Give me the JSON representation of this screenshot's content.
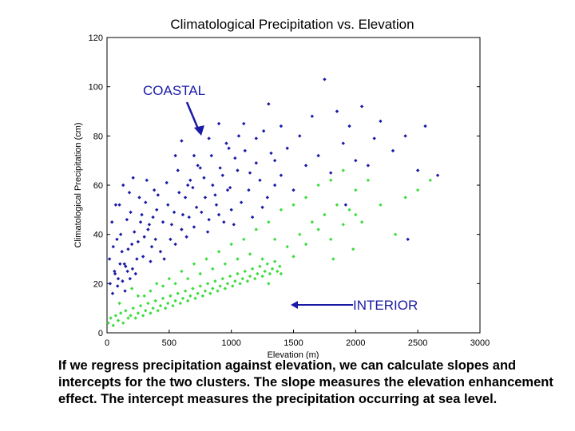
{
  "chart_data": {
    "type": "scatter",
    "title": "Climatological Precipitation vs. Elevation",
    "xlabel": "Elevation (m)",
    "ylabel": "Climatological Precipitation (cm)",
    "xlim": [
      0,
      3000
    ],
    "ylim": [
      0,
      120
    ],
    "xticks": [
      0,
      500,
      1000,
      1500,
      2000,
      2500,
      3000
    ],
    "yticks": [
      0,
      20,
      40,
      60,
      80,
      100,
      120
    ],
    "grid": false,
    "series": [
      {
        "name": "COASTAL",
        "color": "#1a1aa6",
        "points": [
          [
            20,
            30
          ],
          [
            40,
            45
          ],
          [
            60,
            25
          ],
          [
            80,
            38
          ],
          [
            100,
            52
          ],
          [
            120,
            33
          ],
          [
            140,
            28
          ],
          [
            160,
            46
          ],
          [
            180,
            57
          ],
          [
            200,
            36
          ],
          [
            220,
            41
          ],
          [
            240,
            30
          ],
          [
            260,
            55
          ],
          [
            280,
            48
          ],
          [
            300,
            39
          ],
          [
            320,
            62
          ],
          [
            340,
            44
          ],
          [
            360,
            35
          ],
          [
            380,
            58
          ],
          [
            400,
            50
          ],
          [
            50,
            35
          ],
          [
            70,
            52
          ],
          [
            90,
            22
          ],
          [
            110,
            40
          ],
          [
            130,
            60
          ],
          [
            150,
            27
          ],
          [
            170,
            34
          ],
          [
            190,
            49
          ],
          [
            210,
            63
          ],
          [
            230,
            24
          ],
          [
            250,
            37
          ],
          [
            270,
            45
          ],
          [
            290,
            31
          ],
          [
            310,
            53
          ],
          [
            330,
            42
          ],
          [
            350,
            29
          ],
          [
            370,
            47
          ],
          [
            390,
            38
          ],
          [
            410,
            56
          ],
          [
            430,
            33
          ],
          [
            450,
            45
          ],
          [
            480,
            61
          ],
          [
            510,
            38
          ],
          [
            540,
            49
          ],
          [
            570,
            66
          ],
          [
            600,
            42
          ],
          [
            630,
            55
          ],
          [
            660,
            47
          ],
          [
            690,
            59
          ],
          [
            720,
            51
          ],
          [
            460,
            30
          ],
          [
            490,
            52
          ],
          [
            520,
            44
          ],
          [
            550,
            36
          ],
          [
            580,
            57
          ],
          [
            610,
            48
          ],
          [
            640,
            39
          ],
          [
            670,
            62
          ],
          [
            700,
            43
          ],
          [
            730,
            68
          ],
          [
            760,
            49
          ],
          [
            790,
            55
          ],
          [
            820,
            46
          ],
          [
            850,
            60
          ],
          [
            880,
            52
          ],
          [
            910,
            67
          ],
          [
            940,
            45
          ],
          [
            970,
            58
          ],
          [
            1000,
            50
          ],
          [
            1030,
            71
          ],
          [
            780,
            63
          ],
          [
            810,
            41
          ],
          [
            840,
            72
          ],
          [
            870,
            56
          ],
          [
            900,
            48
          ],
          [
            930,
            64
          ],
          [
            960,
            77
          ],
          [
            990,
            59
          ],
          [
            1020,
            44
          ],
          [
            1050,
            66
          ],
          [
            1080,
            53
          ],
          [
            1110,
            74
          ],
          [
            1140,
            58
          ],
          [
            1170,
            47
          ],
          [
            1200,
            69
          ],
          [
            1230,
            62
          ],
          [
            1260,
            82
          ],
          [
            1290,
            55
          ],
          [
            1320,
            73
          ],
          [
            1350,
            60
          ],
          [
            1100,
            85
          ],
          [
            1150,
            65
          ],
          [
            1200,
            79
          ],
          [
            1250,
            51
          ],
          [
            1300,
            93
          ],
          [
            1350,
            70
          ],
          [
            1400,
            64
          ],
          [
            1450,
            75
          ],
          [
            1500,
            58
          ],
          [
            1550,
            80
          ],
          [
            1600,
            68
          ],
          [
            1650,
            88
          ],
          [
            1700,
            72
          ],
          [
            1750,
            103
          ],
          [
            1800,
            65
          ],
          [
            1850,
            90
          ],
          [
            1900,
            77
          ],
          [
            1950,
            84
          ],
          [
            2000,
            70
          ],
          [
            2050,
            92
          ],
          [
            2100,
            68
          ],
          [
            2150,
            79
          ],
          [
            2200,
            86
          ],
          [
            2300,
            74
          ],
          [
            2400,
            80
          ],
          [
            2500,
            66
          ],
          [
            2560,
            84
          ],
          [
            2660,
            64
          ],
          [
            2420,
            38
          ],
          [
            1920,
            52
          ],
          [
            600,
            78
          ],
          [
            700,
            72
          ],
          [
            650,
            60
          ],
          [
            750,
            67
          ],
          [
            550,
            72
          ],
          [
            820,
            79
          ],
          [
            900,
            85
          ],
          [
            980,
            75
          ],
          [
            1060,
            80
          ],
          [
            1400,
            84
          ],
          [
            25,
            20
          ],
          [
            45,
            16
          ],
          [
            65,
            24
          ],
          [
            85,
            19
          ],
          [
            105,
            28
          ],
          [
            125,
            21
          ],
          [
            145,
            17
          ],
          [
            165,
            25
          ],
          [
            185,
            22
          ],
          [
            205,
            26
          ]
        ]
      },
      {
        "name": "INTERIOR",
        "color": "#3ddc3d",
        "points": [
          [
            10,
            4
          ],
          [
            30,
            6
          ],
          [
            50,
            3
          ],
          [
            70,
            7
          ],
          [
            90,
            5
          ],
          [
            110,
            8
          ],
          [
            130,
            4
          ],
          [
            150,
            9
          ],
          [
            170,
            6
          ],
          [
            190,
            7
          ],
          [
            210,
            10
          ],
          [
            230,
            6
          ],
          [
            250,
            8
          ],
          [
            270,
            11
          ],
          [
            290,
            7
          ],
          [
            310,
            9
          ],
          [
            330,
            12
          ],
          [
            350,
            8
          ],
          [
            370,
            10
          ],
          [
            390,
            13
          ],
          [
            410,
            9
          ],
          [
            430,
            11
          ],
          [
            450,
            14
          ],
          [
            470,
            10
          ],
          [
            490,
            12
          ],
          [
            510,
            15
          ],
          [
            530,
            11
          ],
          [
            550,
            13
          ],
          [
            570,
            16
          ],
          [
            590,
            12
          ],
          [
            610,
            14
          ],
          [
            630,
            17
          ],
          [
            650,
            13
          ],
          [
            670,
            15
          ],
          [
            690,
            18
          ],
          [
            710,
            14
          ],
          [
            730,
            16
          ],
          [
            750,
            19
          ],
          [
            770,
            15
          ],
          [
            790,
            17
          ],
          [
            810,
            20
          ],
          [
            830,
            16
          ],
          [
            850,
            18
          ],
          [
            870,
            21
          ],
          [
            890,
            17
          ],
          [
            910,
            19
          ],
          [
            930,
            22
          ],
          [
            950,
            18
          ],
          [
            970,
            20
          ],
          [
            990,
            23
          ],
          [
            1010,
            19
          ],
          [
            1030,
            21
          ],
          [
            1050,
            24
          ],
          [
            1070,
            20
          ],
          [
            1090,
            22
          ],
          [
            1110,
            25
          ],
          [
            1130,
            21
          ],
          [
            1150,
            23
          ],
          [
            1170,
            26
          ],
          [
            1190,
            22
          ],
          [
            1210,
            24
          ],
          [
            1230,
            27
          ],
          [
            1250,
            23
          ],
          [
            1270,
            25
          ],
          [
            1290,
            28
          ],
          [
            1310,
            24
          ],
          [
            1330,
            26
          ],
          [
            1350,
            29
          ],
          [
            1370,
            25
          ],
          [
            1390,
            27
          ],
          [
            200,
            18
          ],
          [
            300,
            15
          ],
          [
            400,
            20
          ],
          [
            500,
            22
          ],
          [
            600,
            25
          ],
          [
            700,
            28
          ],
          [
            800,
            30
          ],
          [
            900,
            33
          ],
          [
            1000,
            36
          ],
          [
            1100,
            38
          ],
          [
            1150,
            32
          ],
          [
            1200,
            42
          ],
          [
            1250,
            30
          ],
          [
            1300,
            45
          ],
          [
            1350,
            38
          ],
          [
            1400,
            50
          ],
          [
            1450,
            35
          ],
          [
            1500,
            52
          ],
          [
            1550,
            40
          ],
          [
            1600,
            55
          ],
          [
            1650,
            45
          ],
          [
            1700,
            60
          ],
          [
            1750,
            48
          ],
          [
            1800,
            62
          ],
          [
            1850,
            52
          ],
          [
            1900,
            66
          ],
          [
            1950,
            50
          ],
          [
            2000,
            58
          ],
          [
            2050,
            45
          ],
          [
            2100,
            62
          ],
          [
            1300,
            20
          ],
          [
            1400,
            24
          ],
          [
            1500,
            31
          ],
          [
            1600,
            36
          ],
          [
            1700,
            42
          ],
          [
            1800,
            38
          ],
          [
            1900,
            44
          ],
          [
            2000,
            48
          ],
          [
            2200,
            52
          ],
          [
            2400,
            55
          ],
          [
            100,
            12
          ],
          [
            250,
            15
          ],
          [
            350,
            17
          ],
          [
            450,
            19
          ],
          [
            550,
            20
          ],
          [
            650,
            22
          ],
          [
            750,
            24
          ],
          [
            850,
            26
          ],
          [
            950,
            28
          ],
          [
            1050,
            30
          ],
          [
            2500,
            58
          ],
          [
            2600,
            62
          ],
          [
            2320,
            40
          ],
          [
            1980,
            34
          ],
          [
            1820,
            30
          ]
        ]
      }
    ],
    "annotations": [
      {
        "text": "COASTAL"
      },
      {
        "text": "INTERIOR"
      }
    ]
  },
  "caption": "If we regress precipitation against elevation, we can calculate slopes and intercepts for the two clusters.  The slope measures the elevation enhancement effect.  The intercept measures the precipitation occurring at sea level."
}
